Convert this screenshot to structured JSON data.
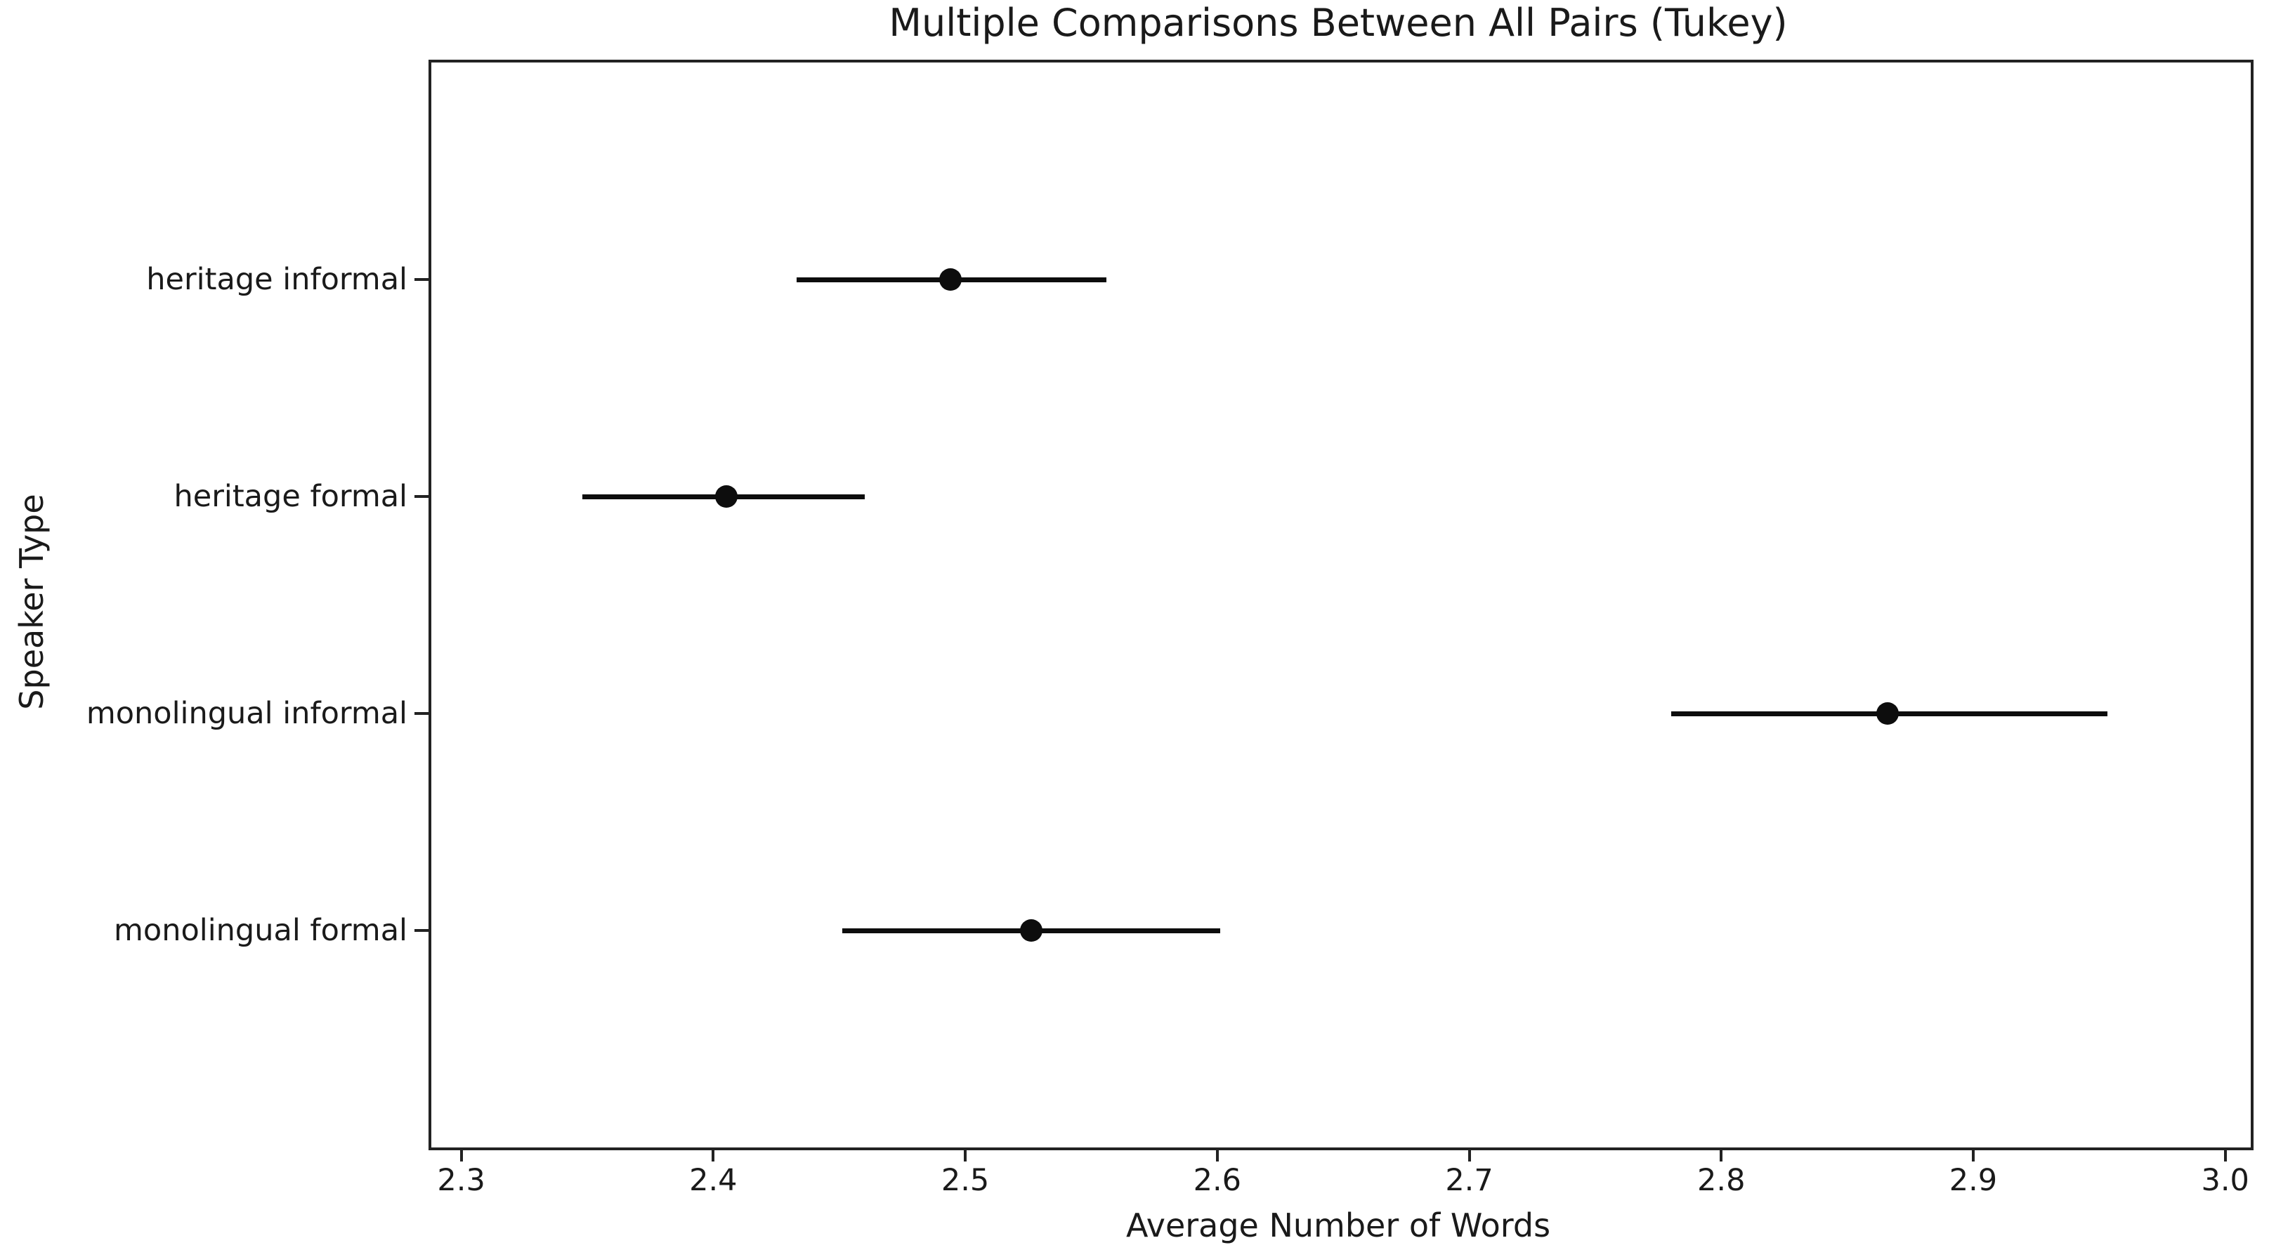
{
  "chart_data": {
    "type": "scatter",
    "subtype": "horizontal-errorbar",
    "title": "Multiple Comparisons Between All Pairs (Tukey)",
    "xlabel": "Average Number of Words",
    "ylabel": "Speaker Type",
    "categories": [
      "heritage informal",
      "heritage formal",
      "monolingual informal",
      "monolingual formal"
    ],
    "points": [
      {
        "label": "heritage informal",
        "mean": 2.493,
        "ci_low": 2.432,
        "ci_high": 2.555
      },
      {
        "label": "heritage formal",
        "mean": 2.404,
        "ci_low": 2.347,
        "ci_high": 2.459
      },
      {
        "label": "monolingual informal",
        "mean": 2.865,
        "ci_low": 2.779,
        "ci_high": 2.952
      },
      {
        "label": "monolingual formal",
        "mean": 2.525,
        "ci_low": 2.45,
        "ci_high": 2.6
      }
    ],
    "x_ticks": [
      2.3,
      2.4,
      2.5,
      2.6,
      2.7,
      2.8,
      2.9,
      3.0
    ],
    "xlim": [
      2.287,
      3.009
    ],
    "grid": false,
    "legend": null,
    "marker_color": "#0d0d0d",
    "line_color": "#0d0d0d",
    "spine_color": "#222222",
    "text_color": "#1a1a1a",
    "background_color": "#ffffff"
  }
}
